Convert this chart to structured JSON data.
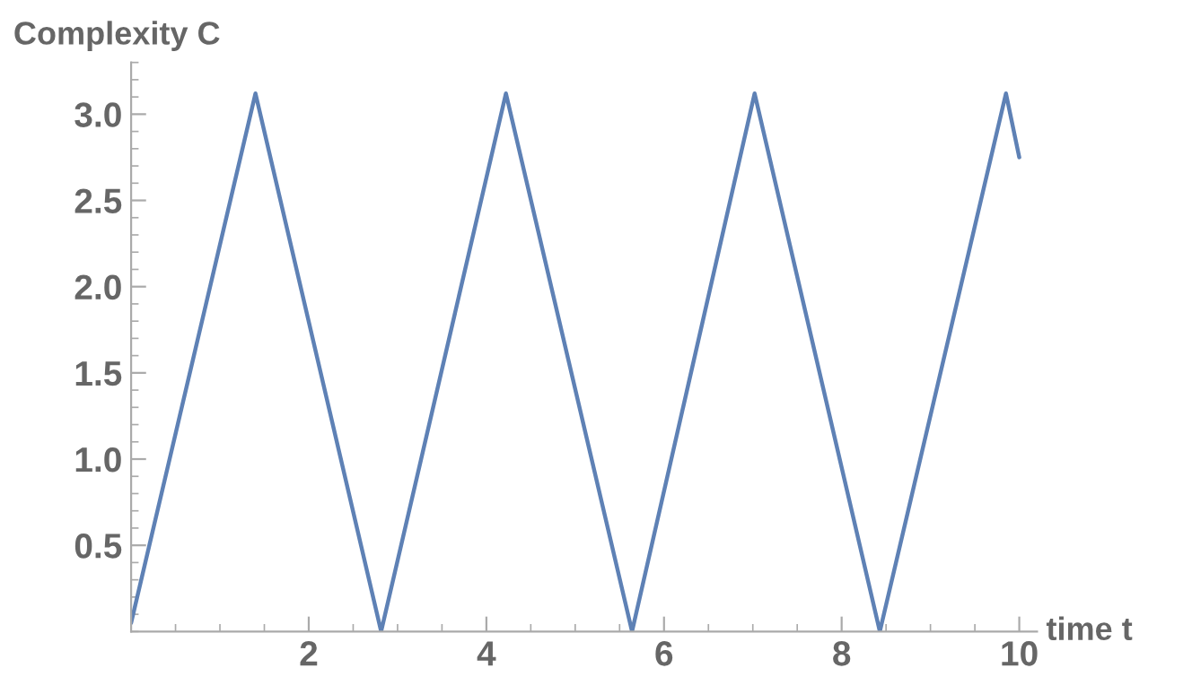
{
  "chart_data": {
    "type": "line",
    "xlabel": "time t",
    "ylabel": "Complexity C",
    "series": [
      {
        "color": "#5e81b5",
        "x": [
          0,
          1.4,
          2.815,
          4.22,
          5.64,
          7.02,
          8.43,
          9.85,
          10.0
        ],
        "values": [
          0.05,
          3.12,
          0.0,
          3.12,
          0.0,
          3.12,
          0.0,
          3.12,
          2.75
        ]
      }
    ],
    "xlim": [
      0,
      10.2
    ],
    "ylim": [
      0,
      3.3
    ],
    "xticks": [
      2,
      4,
      6,
      8,
      10
    ],
    "yticks": [
      0.5,
      {
        "value": 1,
        "label": "1.0"
      },
      1.5,
      {
        "value": 2,
        "label": "2.0"
      },
      2.5,
      {
        "value": 3,
        "label": "3.0"
      }
    ],
    "grid": false,
    "legend": false,
    "marker": "none",
    "line_style": "solid"
  }
}
